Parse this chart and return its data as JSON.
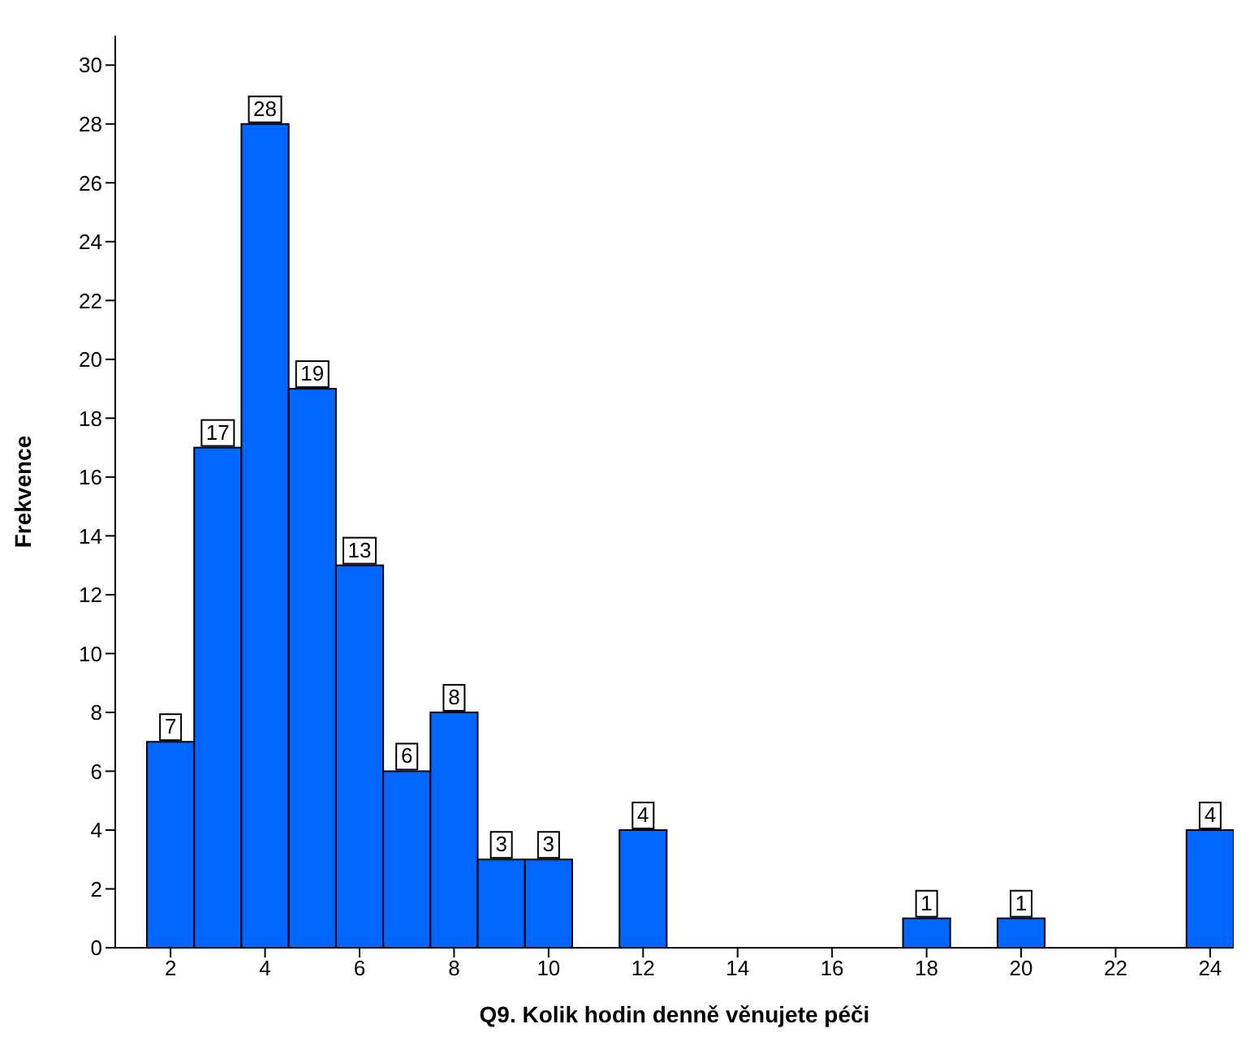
{
  "chart_data": {
    "type": "histogram",
    "xlabel": "Q9. Kolik hodin denně věnujete péči",
    "ylabel": "Frekvence",
    "bins": [
      1.5,
      2.5,
      3.5,
      4.5,
      5.5,
      6.5,
      7.5,
      8.5,
      9.5,
      10.5,
      11.5,
      12.5,
      13.5,
      14.5,
      15.5,
      16.5,
      17.5,
      18.5,
      19.5,
      20.5,
      21.5,
      22.5,
      23.5,
      24.5
    ],
    "values": [
      7,
      17,
      28,
      19,
      13,
      6,
      8,
      3,
      3,
      0,
      4,
      0,
      0,
      0,
      0,
      0,
      1,
      0,
      1,
      0,
      0,
      0,
      4
    ],
    "value_labels": [
      "7",
      "17",
      "28",
      "19",
      "13",
      "6",
      "8",
      "3",
      "3",
      null,
      "4",
      null,
      null,
      null,
      null,
      null,
      "1",
      null,
      "1",
      null,
      null,
      null,
      "4"
    ],
    "color": "#0066ff",
    "xlim": [
      0.83,
      24.5
    ],
    "xticks": [
      2,
      4,
      6,
      8,
      10,
      12,
      14,
      16,
      18,
      20,
      22,
      24
    ],
    "ylim": [
      0,
      31
    ],
    "yticks": [
      0,
      2,
      4,
      6,
      8,
      10,
      12,
      14,
      16,
      18,
      20,
      22,
      24,
      26,
      28,
      30
    ],
    "grid": false,
    "legend": false
  }
}
